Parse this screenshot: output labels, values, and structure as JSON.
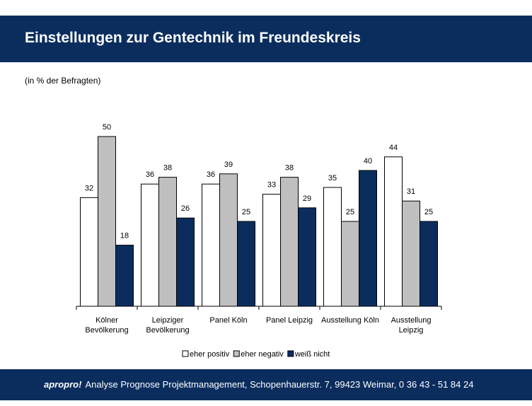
{
  "header": {
    "title": "Einstellungen zur Gentechnik im Freundeskreis"
  },
  "chart_data": {
    "type": "bar",
    "subtitle": "(in % der Befragten)",
    "categories": [
      "Kölner\nBevölkerung",
      "Leipziger\nBevölkerung",
      "Panel Köln",
      "Panel Leipzig",
      "Ausstellung Köln",
      "Ausstellung\nLeipzig"
    ],
    "series": [
      {
        "name": "eher positiv",
        "color": "#ffffff",
        "values": [
          32,
          36,
          36,
          33,
          35,
          44
        ]
      },
      {
        "name": "eher negativ",
        "color": "#bfbfbf",
        "values": [
          50,
          38,
          39,
          38,
          25,
          31
        ]
      },
      {
        "name": "weiß nicht",
        "color": "#0b2d5e",
        "values": [
          18,
          26,
          25,
          29,
          40,
          25
        ]
      }
    ],
    "ylim": [
      0,
      50
    ]
  },
  "footer": {
    "brand": "apropro!",
    "text": "Analyse Prognose Projektmanagement, Schopenhauerstr. 7, 99423 Weimar, 0 36 43 - 51 84 24"
  }
}
